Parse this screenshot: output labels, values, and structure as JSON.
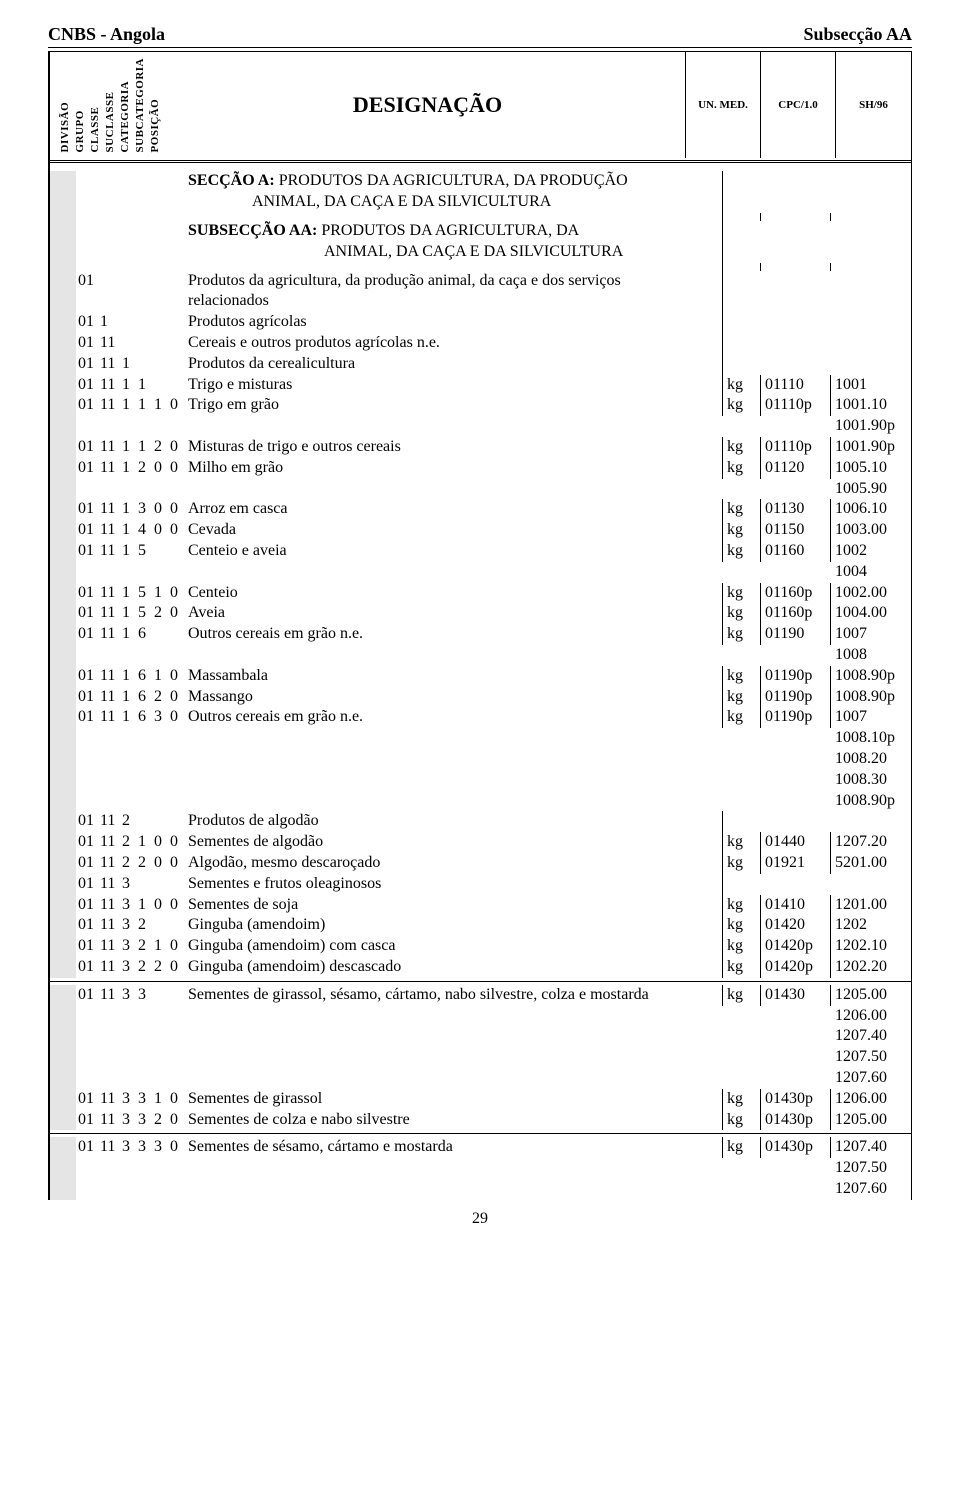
{
  "top": {
    "left": "CNBS - Angola",
    "right": "Subsecção AA"
  },
  "vertical_labels": [
    "DIVISÃO",
    "GRUPO",
    "CLASSE",
    "SUCLASSE",
    "CATEGORIA",
    "SUBCATEGORIA",
    "POSIÇÃO"
  ],
  "header": {
    "desig": "DESIGNAÇÃO",
    "un": "UN. MED.",
    "cpc": "CPC/1.0",
    "sh": "SH/96"
  },
  "section": {
    "title": "SECÇÃO  A:",
    "line1": " PRODUTOS DA AGRICULTURA, DA  PRODUÇÃO",
    "line2": "ANIMAL, DA CAÇA E DA  SILVICULTURA"
  },
  "subsection": {
    "title": "SUBSECÇÃO  AA:",
    "line1": " PRODUTOS DA AGRICULTURA, DA",
    "line2": "ANIMAL, DA CAÇA E DA SILVICULTURA"
  },
  "rows": [
    {
      "c": [
        "01",
        "",
        "",
        "",
        "",
        "",
        ""
      ],
      "d": "Produtos da agricultura, da produção animal, da caça e dos serviços",
      "u": "",
      "p": "",
      "s": ""
    },
    {
      "c": [
        "",
        "",
        "",
        "",
        "",
        "",
        ""
      ],
      "d": "relacionados",
      "u": "",
      "p": "",
      "s": ""
    },
    {
      "c": [
        "01",
        "1",
        "",
        "",
        "",
        "",
        ""
      ],
      "d": "Produtos agrícolas",
      "u": "",
      "p": "",
      "s": ""
    },
    {
      "c": [
        "01",
        "11",
        "",
        "",
        "",
        "",
        ""
      ],
      "d": "Cereais e outros produtos agrícolas n.e.",
      "u": "",
      "p": "",
      "s": ""
    },
    {
      "c": [
        "01",
        "11",
        "1",
        "",
        "",
        "",
        ""
      ],
      "d": "Produtos da cerealicultura",
      "u": "",
      "p": "",
      "s": ""
    },
    {
      "c": [
        "01",
        "11",
        "1",
        "1",
        "",
        "",
        ""
      ],
      "d": "Trigo e misturas",
      "u": "kg",
      "p": "01110",
      "s": "1001"
    },
    {
      "c": [
        "01",
        "11",
        "1",
        "1",
        "1",
        "0",
        ""
      ],
      "d": "Trigo em grão",
      "u": "kg",
      "p": "01110p",
      "s": "1001.10"
    },
    {
      "c": [
        "",
        "",
        "",
        "",
        "",
        "",
        ""
      ],
      "d": "",
      "u": "",
      "p": "",
      "s": "1001.90p"
    },
    {
      "c": [
        "01",
        "11",
        "1",
        "1",
        "2",
        "0",
        ""
      ],
      "d": "Misturas de trigo e outros cereais",
      "u": "kg",
      "p": "01110p",
      "s": "1001.90p"
    },
    {
      "c": [
        "01",
        "11",
        "1",
        "2",
        "0",
        "0",
        ""
      ],
      "d": "Milho em grão",
      "u": "kg",
      "p": "01120",
      "s": "1005.10"
    },
    {
      "c": [
        "",
        "",
        "",
        "",
        "",
        "",
        ""
      ],
      "d": "",
      "u": "",
      "p": "",
      "s": "1005.90"
    },
    {
      "c": [
        "01",
        "11",
        "1",
        "3",
        "0",
        "0",
        ""
      ],
      "d": "Arroz em casca",
      "u": "kg",
      "p": "01130",
      "s": "1006.10"
    },
    {
      "c": [
        "01",
        "11",
        "1",
        "4",
        "0",
        "0",
        ""
      ],
      "d": "Cevada",
      "u": "kg",
      "p": "01150",
      "s": "1003.00"
    },
    {
      "c": [
        "01",
        "11",
        "1",
        "5",
        "",
        "",
        ""
      ],
      "d": "Centeio e aveia",
      "u": "kg",
      "p": "01160",
      "s": "1002"
    },
    {
      "c": [
        "",
        "",
        "",
        "",
        "",
        "",
        ""
      ],
      "d": "",
      "u": "",
      "p": "",
      "s": "1004"
    },
    {
      "c": [
        "01",
        "11",
        "1",
        "5",
        "1",
        "0",
        ""
      ],
      "d": "Centeio",
      "u": "kg",
      "p": "01160p",
      "s": "1002.00"
    },
    {
      "c": [
        "01",
        "11",
        "1",
        "5",
        "2",
        "0",
        ""
      ],
      "d": "Aveia",
      "u": "kg",
      "p": "01160p",
      "s": "1004.00"
    },
    {
      "c": [
        "01",
        "11",
        "1",
        "6",
        "",
        "",
        ""
      ],
      "d": "Outros cereais em grão  n.e.",
      "u": "kg",
      "p": "01190",
      "s": "1007"
    },
    {
      "c": [
        "",
        "",
        "",
        "",
        "",
        "",
        ""
      ],
      "d": "",
      "u": "",
      "p": "",
      "s": "1008"
    },
    {
      "c": [
        "01",
        "11",
        "1",
        "6",
        "1",
        "0",
        ""
      ],
      "d": "Massambala",
      "u": "kg",
      "p": "01190p",
      "s": "1008.90p"
    },
    {
      "c": [
        "01",
        "11",
        "1",
        "6",
        "2",
        "0",
        ""
      ],
      "d": "Massango",
      "u": "kg",
      "p": "01190p",
      "s": "1008.90p"
    },
    {
      "c": [
        "01",
        "11",
        "1",
        "6",
        "3",
        "0",
        ""
      ],
      "d": "Outros cereais em grão  n.e.",
      "u": "kg",
      "p": "01190p",
      "s": "1007"
    },
    {
      "c": [
        "",
        "",
        "",
        "",
        "",
        "",
        ""
      ],
      "d": "",
      "u": "",
      "p": "",
      "s": "1008.10p"
    },
    {
      "c": [
        "",
        "",
        "",
        "",
        "",
        "",
        ""
      ],
      "d": "",
      "u": "",
      "p": "",
      "s": "1008.20"
    },
    {
      "c": [
        "",
        "",
        "",
        "",
        "",
        "",
        ""
      ],
      "d": "",
      "u": "",
      "p": "",
      "s": "1008.30"
    },
    {
      "c": [
        "",
        "",
        "",
        "",
        "",
        "",
        ""
      ],
      "d": "",
      "u": "",
      "p": "",
      "s": "1008.90p"
    },
    {
      "c": [
        "01",
        "11",
        "2",
        "",
        "",
        "",
        ""
      ],
      "d": "Produtos de algodão",
      "u": "",
      "p": "",
      "s": ""
    },
    {
      "c": [
        "01",
        "11",
        "2",
        "1",
        "0",
        "0",
        ""
      ],
      "d": "Sementes de algodão",
      "u": "kg",
      "p": "01440",
      "s": "1207.20"
    },
    {
      "c": [
        "01",
        "11",
        "2",
        "2",
        "0",
        "0",
        ""
      ],
      "d": "Algodão, mesmo descaroçado",
      "u": "kg",
      "p": "01921",
      "s": "5201.00"
    },
    {
      "c": [
        "01",
        "11",
        "3",
        "",
        "",
        "",
        ""
      ],
      "d": "Sementes e frutos oleaginosos",
      "u": "",
      "p": "",
      "s": ""
    },
    {
      "c": [
        "01",
        "11",
        "3",
        "1",
        "0",
        "0",
        ""
      ],
      "d": "Sementes de soja",
      "u": "kg",
      "p": "01410",
      "s": "1201.00"
    },
    {
      "c": [
        "01",
        "11",
        "3",
        "2",
        "",
        "",
        ""
      ],
      "d": "Ginguba (amendoim)",
      "u": "kg",
      "p": "01420",
      "s": "1202"
    },
    {
      "c": [
        "01",
        "11",
        "3",
        "2",
        "1",
        "0",
        ""
      ],
      "d": "Ginguba (amendoim) com casca",
      "u": "kg",
      "p": "01420p",
      "s": "1202.10"
    },
    {
      "c": [
        "01",
        "11",
        "3",
        "2",
        "2",
        "0",
        ""
      ],
      "d": "Ginguba (amendoim) descascado",
      "u": "kg",
      "p": "01420p",
      "s": "1202.20"
    }
  ],
  "rows2": [
    {
      "c": [
        "01",
        "11",
        "3",
        "3",
        "",
        "",
        ""
      ],
      "d": "Sementes de girassol, sésamo, cártamo, nabo silvestre, colza e mostarda",
      "u": "kg",
      "p": "01430",
      "s": "1205.00"
    },
    {
      "c": [
        "",
        "",
        "",
        "",
        "",
        "",
        ""
      ],
      "d": "",
      "u": "",
      "p": "",
      "s": "1206.00"
    },
    {
      "c": [
        "",
        "",
        "",
        "",
        "",
        "",
        ""
      ],
      "d": "",
      "u": "",
      "p": "",
      "s": "1207.40"
    },
    {
      "c": [
        "",
        "",
        "",
        "",
        "",
        "",
        ""
      ],
      "d": "",
      "u": "",
      "p": "",
      "s": "1207.50"
    },
    {
      "c": [
        "",
        "",
        "",
        "",
        "",
        "",
        ""
      ],
      "d": "",
      "u": "",
      "p": "",
      "s": "1207.60"
    },
    {
      "c": [
        "01",
        "11",
        "3",
        "3",
        "1",
        "0",
        ""
      ],
      "d": "Sementes de girassol",
      "u": "kg",
      "p": "01430p",
      "s": "1206.00"
    },
    {
      "c": [
        "01",
        "11",
        "3",
        "3",
        "2",
        "0",
        ""
      ],
      "d": "Sementes de colza e nabo silvestre",
      "u": "kg",
      "p": "01430p",
      "s": "1205.00"
    }
  ],
  "rows3": [
    {
      "c": [
        "01",
        "11",
        "3",
        "3",
        "3",
        "0",
        ""
      ],
      "d": "Sementes de sésamo, cártamo e mostarda",
      "u": "kg",
      "p": "01430p",
      "s": "1207.40"
    },
    {
      "c": [
        "",
        "",
        "",
        "",
        "",
        "",
        ""
      ],
      "d": "",
      "u": "",
      "p": "",
      "s": "1207.50"
    },
    {
      "c": [
        "",
        "",
        "",
        "",
        "",
        "",
        ""
      ],
      "d": "",
      "u": "",
      "p": "",
      "s": "1207.60"
    }
  ],
  "pagenum": "29"
}
